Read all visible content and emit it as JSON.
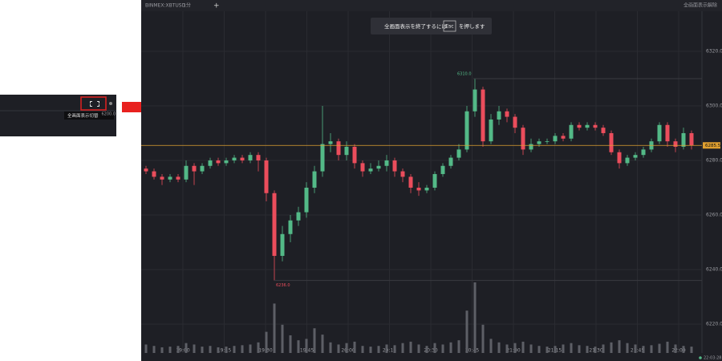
{
  "inset": {
    "tooltip": "全画面表示切替",
    "price": "6200.0"
  },
  "toolbar": {
    "symbol": "BINMEX:XBTUSD",
    "interval": "1分",
    "exit_button": "全画面表示解除"
  },
  "notice": {
    "before": "全画面表示を終了するには",
    "key": "Esc",
    "after": "を押します"
  },
  "status": {
    "time": "22:03:28"
  },
  "chart_data": {
    "type": "candlestick",
    "up_color": "#53b987",
    "down_color": "#eb4d5c",
    "volume_color": "#5d5f66",
    "last_color": "#e0a030",
    "open": [
      6277,
      6276,
      6274,
      6273,
      6274,
      6273,
      6278,
      6276,
      6278,
      6280,
      6279,
      6280,
      6281,
      6280,
      6282,
      6280,
      6268,
      6245,
      6253,
      6258,
      6261,
      6270,
      6276,
      6286,
      6287,
      6282,
      6285,
      6279,
      6276,
      6277,
      6278,
      6280,
      6276,
      6274,
      6270,
      6269,
      6270,
      6275,
      6278,
      6281,
      6284,
      6298,
      6306,
      6287,
      6295,
      6298,
      6296,
      6292,
      6284,
      6286,
      6287,
      6287,
      6289,
      6288,
      6293,
      6292,
      6293,
      6292,
      6290,
      6283,
      6279,
      6281,
      6282,
      6284,
      6287,
      6293,
      6287,
      6285,
      6290
    ],
    "high": [
      6278,
      6277,
      6275,
      6275,
      6275,
      6280,
      6279,
      6279,
      6281,
      6281,
      6281,
      6282,
      6282,
      6283,
      6283,
      6281,
      6269,
      6256,
      6260,
      6263,
      6272,
      6278,
      6300,
      6290,
      6288,
      6287,
      6286,
      6280,
      6279,
      6280,
      6282,
      6281,
      6277,
      6275,
      6272,
      6271,
      6276,
      6279,
      6282,
      6286,
      6300,
      6310,
      6307,
      6297,
      6300,
      6299,
      6297,
      6293,
      6288,
      6288,
      6288,
      6290,
      6290,
      6294,
      6294,
      6294,
      6294,
      6293,
      6291,
      6284,
      6282,
      6283,
      6285,
      6288,
      6294,
      6294,
      6288,
      6292,
      6291
    ],
    "low": [
      6275,
      6273,
      6271,
      6272,
      6272,
      6272,
      6271,
      6275,
      6277,
      6278,
      6278,
      6279,
      6279,
      6279,
      6276,
      6265,
      6236,
      6243,
      6250,
      6256,
      6259,
      6268,
      6274,
      6283,
      6280,
      6280,
      6277,
      6274,
      6275,
      6276,
      6276,
      6274,
      6272,
      6268,
      6267,
      6268,
      6269,
      6274,
      6277,
      6280,
      6283,
      6296,
      6285,
      6286,
      6293,
      6294,
      6290,
      6282,
      6283,
      6285,
      6286,
      6286,
      6287,
      6287,
      6291,
      6291,
      6291,
      6289,
      6282,
      6277,
      6278,
      6280,
      6281,
      6283,
      6286,
      6285,
      6283,
      6284,
      6284
    ],
    "close": [
      6276,
      6274,
      6273,
      6274,
      6273,
      6278,
      6276,
      6278,
      6280,
      6279,
      6280,
      6281,
      6280,
      6282,
      6280,
      6268,
      6245,
      6253,
      6258,
      6261,
      6270,
      6276,
      6286,
      6287,
      6282,
      6285,
      6279,
      6276,
      6277,
      6278,
      6280,
      6276,
      6274,
      6270,
      6269,
      6270,
      6275,
      6278,
      6281,
      6284,
      6298,
      6306,
      6287,
      6295,
      6298,
      6296,
      6292,
      6284,
      6286,
      6287,
      6287,
      6289,
      6288,
      6293,
      6292,
      6293,
      6292,
      6290,
      6283,
      6279,
      6281,
      6282,
      6284,
      6287,
      6293,
      6287,
      6285,
      6290,
      6285.5
    ],
    "volume": [
      12,
      10,
      8,
      9,
      10,
      14,
      12,
      9,
      10,
      8,
      9,
      10,
      11,
      12,
      15,
      30,
      70,
      40,
      25,
      18,
      20,
      35,
      26,
      15,
      12,
      14,
      16,
      10,
      9,
      10,
      12,
      11,
      14,
      16,
      12,
      10,
      14,
      12,
      15,
      18,
      60,
      100,
      40,
      20,
      15,
      12,
      14,
      16,
      12,
      10,
      9,
      10,
      12,
      14,
      11,
      10,
      9,
      12,
      15,
      18,
      14,
      12,
      10,
      11,
      13,
      16,
      12,
      10,
      9
    ],
    "vlim": [
      0,
      100
    ],
    "ylim": [
      6209.4,
      6334.7
    ],
    "yticks": [
      {
        "value": 6220,
        "label": "6220.0"
      },
      {
        "value": 6240,
        "label": "6240.0"
      },
      {
        "value": 6260,
        "label": "6260.0"
      },
      {
        "value": 6280,
        "label": "6280.0"
      },
      {
        "value": 6300,
        "label": "6300.0"
      },
      {
        "value": 6320,
        "label": "6320.0"
      }
    ],
    "xtick_labels": [
      "19:00",
      "19:15",
      "19:30",
      "19:45",
      "20:00",
      "20:15",
      "20:30",
      "20:45",
      "21:00",
      "21:15",
      "21:30",
      "21:45",
      "22:00"
    ],
    "high_marker": {
      "value": 6310,
      "label": "6310.0"
    },
    "low_marker": {
      "value": 6236,
      "label": "6236.0"
    },
    "last": 6285.5,
    "grid": true
  }
}
